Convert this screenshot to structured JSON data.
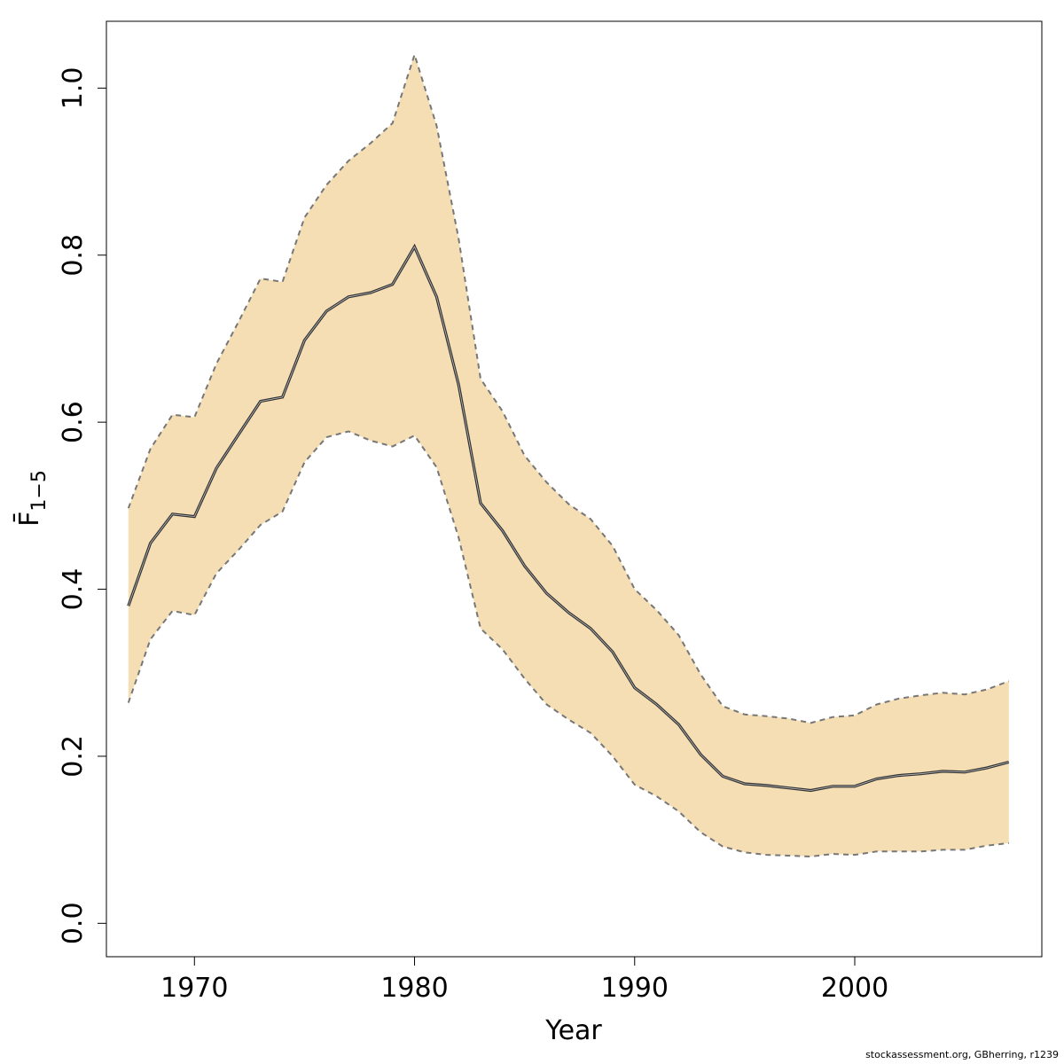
{
  "chart_data": {
    "type": "area",
    "xlabel": "Year",
    "ylabel": "F̄",
    "ylabel_subscript": "1−5",
    "xlim": [
      1966,
      2008.5
    ],
    "ylim": [
      -0.04,
      1.08
    ],
    "xticks": [
      1970,
      1980,
      1990,
      2000
    ],
    "xtick_labels": [
      "1970",
      "1980",
      "1990",
      "2000"
    ],
    "yticks": [
      0.0,
      0.2,
      0.4,
      0.6,
      0.8,
      1.0
    ],
    "ytick_labels": [
      "0.0",
      "0.2",
      "0.4",
      "0.6",
      "0.8",
      "1.0"
    ],
    "grid": false,
    "colors": {
      "band": "#f5deb3",
      "estimate": "#333333",
      "bounds": "#777777"
    },
    "x": [
      1967,
      1968,
      1969,
      1970,
      1971,
      1972,
      1973,
      1974,
      1975,
      1976,
      1977,
      1978,
      1979,
      1980,
      1981,
      1982,
      1983,
      1984,
      1985,
      1986,
      1987,
      1988,
      1989,
      1990,
      1991,
      1992,
      1993,
      1994,
      1995,
      1996,
      1997,
      1998,
      1999,
      2000,
      2001,
      2002,
      2003,
      2004,
      2005,
      2006,
      2007
    ],
    "series": [
      {
        "values": [
          0.38,
          0.455,
          0.49,
          0.487,
          0.545,
          0.585,
          0.625,
          0.63,
          0.698,
          0.733,
          0.75,
          0.755,
          0.765,
          0.81,
          0.75,
          0.645,
          0.503,
          0.47,
          0.428,
          0.395,
          0.372,
          0.353,
          0.325,
          0.282,
          0.262,
          0.238,
          0.202,
          0.176,
          0.167,
          0.165,
          0.162,
          0.159,
          0.164,
          0.164,
          0.173,
          0.177,
          0.179,
          0.182,
          0.181,
          0.186,
          0.193
        ]
      },
      {
        "values": [
          0.497,
          0.568,
          0.609,
          0.606,
          0.67,
          0.72,
          0.772,
          0.768,
          0.845,
          0.884,
          0.913,
          0.934,
          0.958,
          1.04,
          0.955,
          0.82,
          0.652,
          0.613,
          0.56,
          0.528,
          0.502,
          0.484,
          0.452,
          0.4,
          0.375,
          0.345,
          0.298,
          0.26,
          0.25,
          0.248,
          0.245,
          0.24,
          0.247,
          0.249,
          0.262,
          0.269,
          0.273,
          0.276,
          0.274,
          0.28,
          0.29
        ]
      },
      {
        "values": [
          0.264,
          0.34,
          0.374,
          0.369,
          0.419,
          0.447,
          0.477,
          0.493,
          0.552,
          0.582,
          0.589,
          0.578,
          0.571,
          0.584,
          0.546,
          0.462,
          0.353,
          0.328,
          0.293,
          0.262,
          0.244,
          0.228,
          0.2,
          0.166,
          0.152,
          0.134,
          0.109,
          0.092,
          0.085,
          0.082,
          0.081,
          0.08,
          0.083,
          0.082,
          0.086,
          0.086,
          0.086,
          0.088,
          0.088,
          0.093,
          0.096
        ]
      }
    ]
  },
  "credit": "stockassessment.org, GBherring, r1239"
}
